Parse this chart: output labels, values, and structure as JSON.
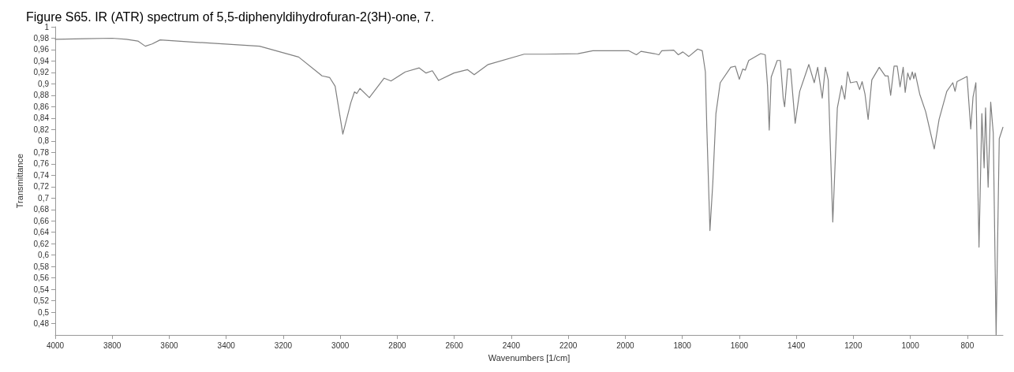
{
  "chart_data": {
    "type": "line",
    "title": "Figure S65. IR (ATR) spectrum of 5,5-diphenyldihydrofuran-2(3H)-one, 7.",
    "xlabel": "Wavenumbers [1/cm]",
    "ylabel": "Transmittance",
    "xlim": [
      4000,
      675
    ],
    "xticks": [
      4000,
      3800,
      3600,
      3400,
      3200,
      3000,
      2800,
      2600,
      2400,
      2200,
      2000,
      1800,
      1600,
      1400,
      1200,
      1000,
      800
    ],
    "ylim": [
      0.46,
      1
    ],
    "yticks": [
      {
        "value": 0.48,
        "label": "0,48"
      },
      {
        "value": 0.5,
        "label": "0,5"
      },
      {
        "value": 0.52,
        "label": "0,52"
      },
      {
        "value": 0.54,
        "label": "0,54"
      },
      {
        "value": 0.56,
        "label": "0,56"
      },
      {
        "value": 0.58,
        "label": "0,58"
      },
      {
        "value": 0.6,
        "label": "0,6"
      },
      {
        "value": 0.62,
        "label": "0,62"
      },
      {
        "value": 0.64,
        "label": "0,64"
      },
      {
        "value": 0.66,
        "label": "0,66"
      },
      {
        "value": 0.68,
        "label": "0,68"
      },
      {
        "value": 0.7,
        "label": "0,7"
      },
      {
        "value": 0.72,
        "label": "0,72"
      },
      {
        "value": 0.74,
        "label": "0,74"
      },
      {
        "value": 0.76,
        "label": "0,76"
      },
      {
        "value": 0.78,
        "label": "0,78"
      },
      {
        "value": 0.8,
        "label": "0,8"
      },
      {
        "value": 0.82,
        "label": "0,82"
      },
      {
        "value": 0.84,
        "label": "0,84"
      },
      {
        "value": 0.86,
        "label": "0,86"
      },
      {
        "value": 0.88,
        "label": "0,88"
      },
      {
        "value": 0.9,
        "label": "0,9"
      },
      {
        "value": 0.92,
        "label": "0,92"
      },
      {
        "value": 0.94,
        "label": "0,94"
      },
      {
        "value": 0.96,
        "label": "0,96"
      },
      {
        "value": 0.98,
        "label": "0,98"
      },
      1
    ],
    "grid": false,
    "marker": "none",
    "line_style": "solid",
    "series": [
      {
        "color": "#808080",
        "x": [
          4000,
          3900,
          3800,
          3750,
          3710,
          3684,
          3660,
          3632,
          3509,
          3283,
          3146,
          3081,
          3064,
          3037,
          3018,
          2991,
          2963,
          2950,
          2942,
          2931,
          2898,
          2846,
          2822,
          2772,
          2723,
          2699,
          2677,
          2655,
          2601,
          2554,
          2530,
          2481,
          2355,
          2281,
          2166,
          2114,
          1987,
          1961,
          1945,
          1898,
          1882,
          1872,
          1830,
          1814,
          1798,
          1777,
          1746,
          1730,
          1719,
          1714,
          1703,
          1693,
          1682,
          1667,
          1630,
          1614,
          1600,
          1588,
          1579,
          1567,
          1525,
          1509,
          1501,
          1495,
          1488,
          1467,
          1456,
          1446,
          1441,
          1430,
          1420,
          1404,
          1388,
          1356,
          1337,
          1325,
          1309,
          1298,
          1288,
          1272,
          1256,
          1241,
          1230,
          1220,
          1210,
          1188,
          1178,
          1169,
          1159,
          1148,
          1135,
          1109,
          1088,
          1078,
          1069,
          1057,
          1046,
          1036,
          1025,
          1018,
          1009,
          1001,
          993,
          988,
          983,
          967,
          946,
          916,
          899,
          872,
          851,
          843,
          836,
          801,
          788,
          780,
          770,
          759,
          749,
          741,
          736,
          727,
          718,
          709,
          699,
          688,
          675
        ],
        "values": [
          0.978,
          0.979,
          0.98,
          0.978,
          0.975,
          0.966,
          0.97,
          0.977,
          0.973,
          0.966,
          0.947,
          0.921,
          0.914,
          0.911,
          0.896,
          0.812,
          0.867,
          0.886,
          0.883,
          0.892,
          0.876,
          0.91,
          0.905,
          0.921,
          0.928,
          0.919,
          0.923,
          0.906,
          0.919,
          0.925,
          0.916,
          0.934,
          0.952,
          0.952,
          0.953,
          0.958,
          0.958,
          0.951,
          0.957,
          0.953,
          0.951,
          0.958,
          0.959,
          0.951,
          0.956,
          0.948,
          0.961,
          0.958,
          0.921,
          0.824,
          0.643,
          0.726,
          0.848,
          0.902,
          0.929,
          0.931,
          0.908,
          0.926,
          0.924,
          0.941,
          0.953,
          0.951,
          0.897,
          0.819,
          0.912,
          0.941,
          0.941,
          0.875,
          0.86,
          0.926,
          0.926,
          0.831,
          0.887,
          0.934,
          0.902,
          0.929,
          0.875,
          0.929,
          0.907,
          0.658,
          0.858,
          0.897,
          0.873,
          0.921,
          0.902,
          0.904,
          0.89,
          0.904,
          0.882,
          0.838,
          0.907,
          0.929,
          0.914,
          0.914,
          0.88,
          0.931,
          0.931,
          0.895,
          0.929,
          0.885,
          0.919,
          0.907,
          0.921,
          0.909,
          0.919,
          0.882,
          0.851,
          0.786,
          0.838,
          0.887,
          0.902,
          0.887,
          0.904,
          0.913,
          0.821,
          0.877,
          0.902,
          0.614,
          0.848,
          0.753,
          0.858,
          0.719,
          0.868,
          0.814,
          0.46,
          0.804,
          0.824
        ]
      }
    ]
  }
}
